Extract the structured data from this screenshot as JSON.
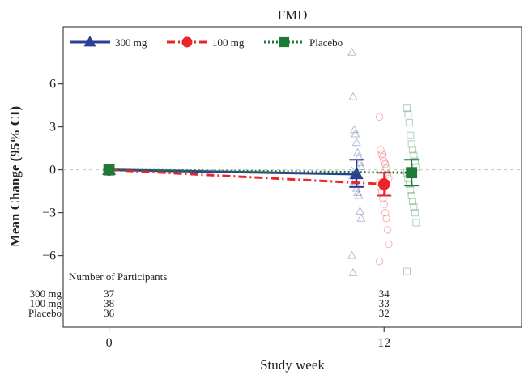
{
  "chart_data": {
    "type": "line",
    "title": "FMD",
    "xlabel": "Study week",
    "ylabel": "Mean Change (95% CI)",
    "x_ticks": [
      0,
      12
    ],
    "y_ticks": [
      6,
      3,
      0,
      -3,
      -6
    ],
    "y_tick_labels": [
      "6",
      "3",
      "0",
      "−3",
      "−6"
    ],
    "xlim": [
      -2,
      18
    ],
    "ylim": [
      -11,
      10
    ],
    "reference_line_y": 0,
    "legend_position": "top-left",
    "series": [
      {
        "name": "300 mg",
        "color": "#2b3f93",
        "marker": "triangle",
        "line_style": "solid",
        "x": [
          0,
          12
        ],
        "mean": [
          0,
          -0.3
        ],
        "ci_lower": [
          0,
          -1.2
        ],
        "ci_upper": [
          0,
          0.7
        ],
        "individual_values_week12": [
          8.2,
          5.1,
          2.8,
          2.5,
          1.9,
          1.2,
          0.9,
          0.5,
          0.2,
          -0.1,
          -0.4,
          -0.8,
          -1.0,
          -1.3,
          -1.6,
          -1.8,
          -2.9,
          -3.4,
          -6.0,
          -7.2
        ]
      },
      {
        "name": "100 mg",
        "color": "#e8262b",
        "marker": "circle",
        "line_style": "dashdot",
        "x": [
          0,
          12
        ],
        "mean": [
          0,
          -1.0
        ],
        "ci_lower": [
          0,
          -1.8
        ],
        "ci_upper": [
          0,
          -0.2
        ],
        "individual_values_week12": [
          3.7,
          1.4,
          1.1,
          0.9,
          0.6,
          0.4,
          0.1,
          -0.3,
          -0.6,
          -0.9,
          -1.2,
          -1.5,
          -2.0,
          -2.4,
          -3.0,
          -3.4,
          -4.2,
          -5.2,
          -6.4
        ]
      },
      {
        "name": "Placebo",
        "color": "#1f7a35",
        "marker": "square",
        "line_style": "dotted",
        "x": [
          0,
          12
        ],
        "mean": [
          0,
          -0.2
        ],
        "ci_lower": [
          0,
          -1.1
        ],
        "ci_upper": [
          0,
          0.7
        ],
        "individual_values_week12": [
          4.3,
          3.9,
          3.3,
          2.4,
          1.8,
          1.4,
          1.0,
          0.6,
          0.2,
          -0.2,
          -0.6,
          -1.0,
          -1.4,
          -1.8,
          -2.2,
          -2.6,
          -3.0,
          -3.7,
          -7.1
        ]
      }
    ],
    "participants": {
      "heading": "Number of Participants",
      "rows": [
        {
          "label": "300 mg",
          "counts": [
            "37",
            "34"
          ]
        },
        {
          "label": "100 mg",
          "counts": [
            "38",
            "33"
          ]
        },
        {
          "label": "Placebo",
          "counts": [
            "36",
            "32"
          ]
        }
      ]
    }
  }
}
